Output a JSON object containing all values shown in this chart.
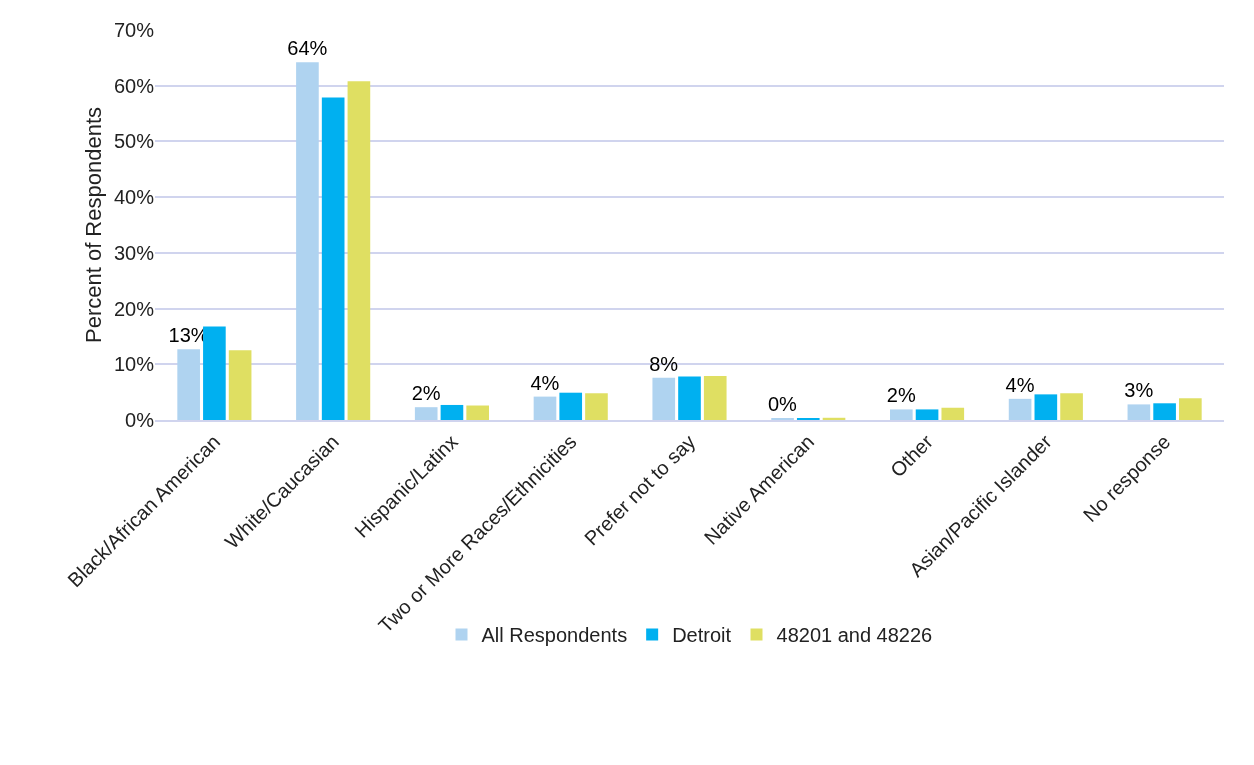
{
  "chart_data": {
    "type": "bar",
    "ylabel": "Percent of Respondents",
    "categories": [
      "Black/African American",
      "White/Caucasian",
      "Hispanic/Latinx",
      "Two or More Races/Ethnicities",
      "Prefer not to say",
      "Native American",
      "Other",
      "Asian/Pacific Islander",
      "No response"
    ],
    "series": [
      {
        "name": "All Respondents",
        "color": "#afd3f0",
        "values": [
          12.7,
          64.2,
          2.3,
          4.2,
          7.6,
          0.3,
          1.9,
          3.8,
          2.8
        ],
        "value_labels": [
          "13%",
          "64%",
          "2%",
          "4%",
          "8%",
          "0%",
          "2%",
          "4%",
          "3%"
        ]
      },
      {
        "name": "Detroit",
        "color": "#00b0f0",
        "values": [
          16.8,
          57.9,
          2.7,
          4.9,
          7.8,
          0.2,
          1.9,
          4.6,
          3.0
        ]
      },
      {
        "name": "48201 and 48226",
        "color": "#dfdf62",
        "values": [
          12.5,
          60.8,
          2.6,
          4.8,
          7.9,
          0.4,
          2.2,
          4.8,
          3.9
        ]
      }
    ],
    "ylim": [
      0,
      70
    ],
    "yticks": [
      {
        "value": 0,
        "label": "0%"
      },
      {
        "value": 10,
        "label": "10%"
      },
      {
        "value": 20,
        "label": "20%"
      },
      {
        "value": 30,
        "label": "30%"
      },
      {
        "value": 40,
        "label": "40%"
      },
      {
        "value": 50,
        "label": "50%"
      },
      {
        "value": 60,
        "label": "60%"
      },
      {
        "value": 70,
        "label": "70%"
      }
    ],
    "grid": "y",
    "legend": "bottom"
  }
}
